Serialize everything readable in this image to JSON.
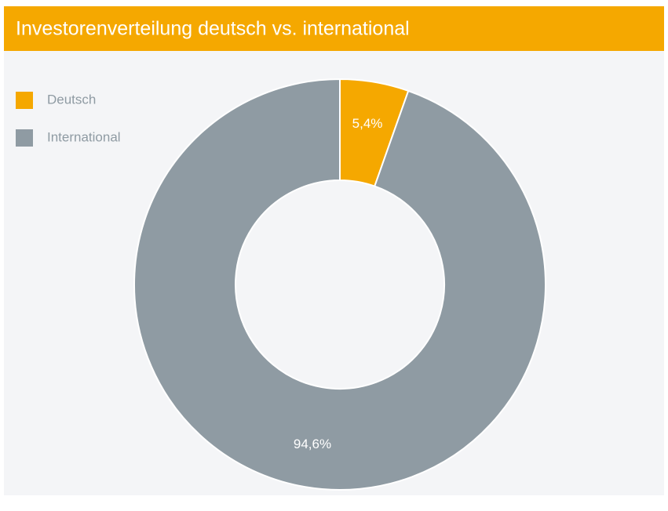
{
  "chart_data": {
    "type": "pie",
    "donut": true,
    "title": "Investorenverteilung deutsch vs. international",
    "categories": [
      "Deutsch",
      "International"
    ],
    "values": [
      5.4,
      94.6
    ],
    "value_labels": [
      "5,4%",
      "94,6%"
    ],
    "colors": [
      "#f5a800",
      "#8f9ba3"
    ],
    "legend": "top-left"
  }
}
